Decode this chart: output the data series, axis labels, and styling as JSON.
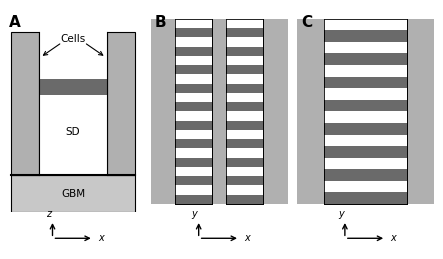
{
  "bg": "#ffffff",
  "light_gray": "#c8c8c8",
  "dark_gray": "#6a6a6a",
  "wall_gray": "#b0b0b0",
  "black": "#000000",
  "panel_labels": [
    "A",
    "B",
    "C"
  ],
  "label_cells": "Cells",
  "label_sd": "SD",
  "label_gbm": "GBM",
  "axis_A": [
    "z",
    "x"
  ],
  "axis_BC": [
    "y",
    "x"
  ],
  "n_bars_B": 10,
  "n_bars_C": 8,
  "fs_panel": 11,
  "fs_label": 7.5,
  "fs_axis": 7
}
